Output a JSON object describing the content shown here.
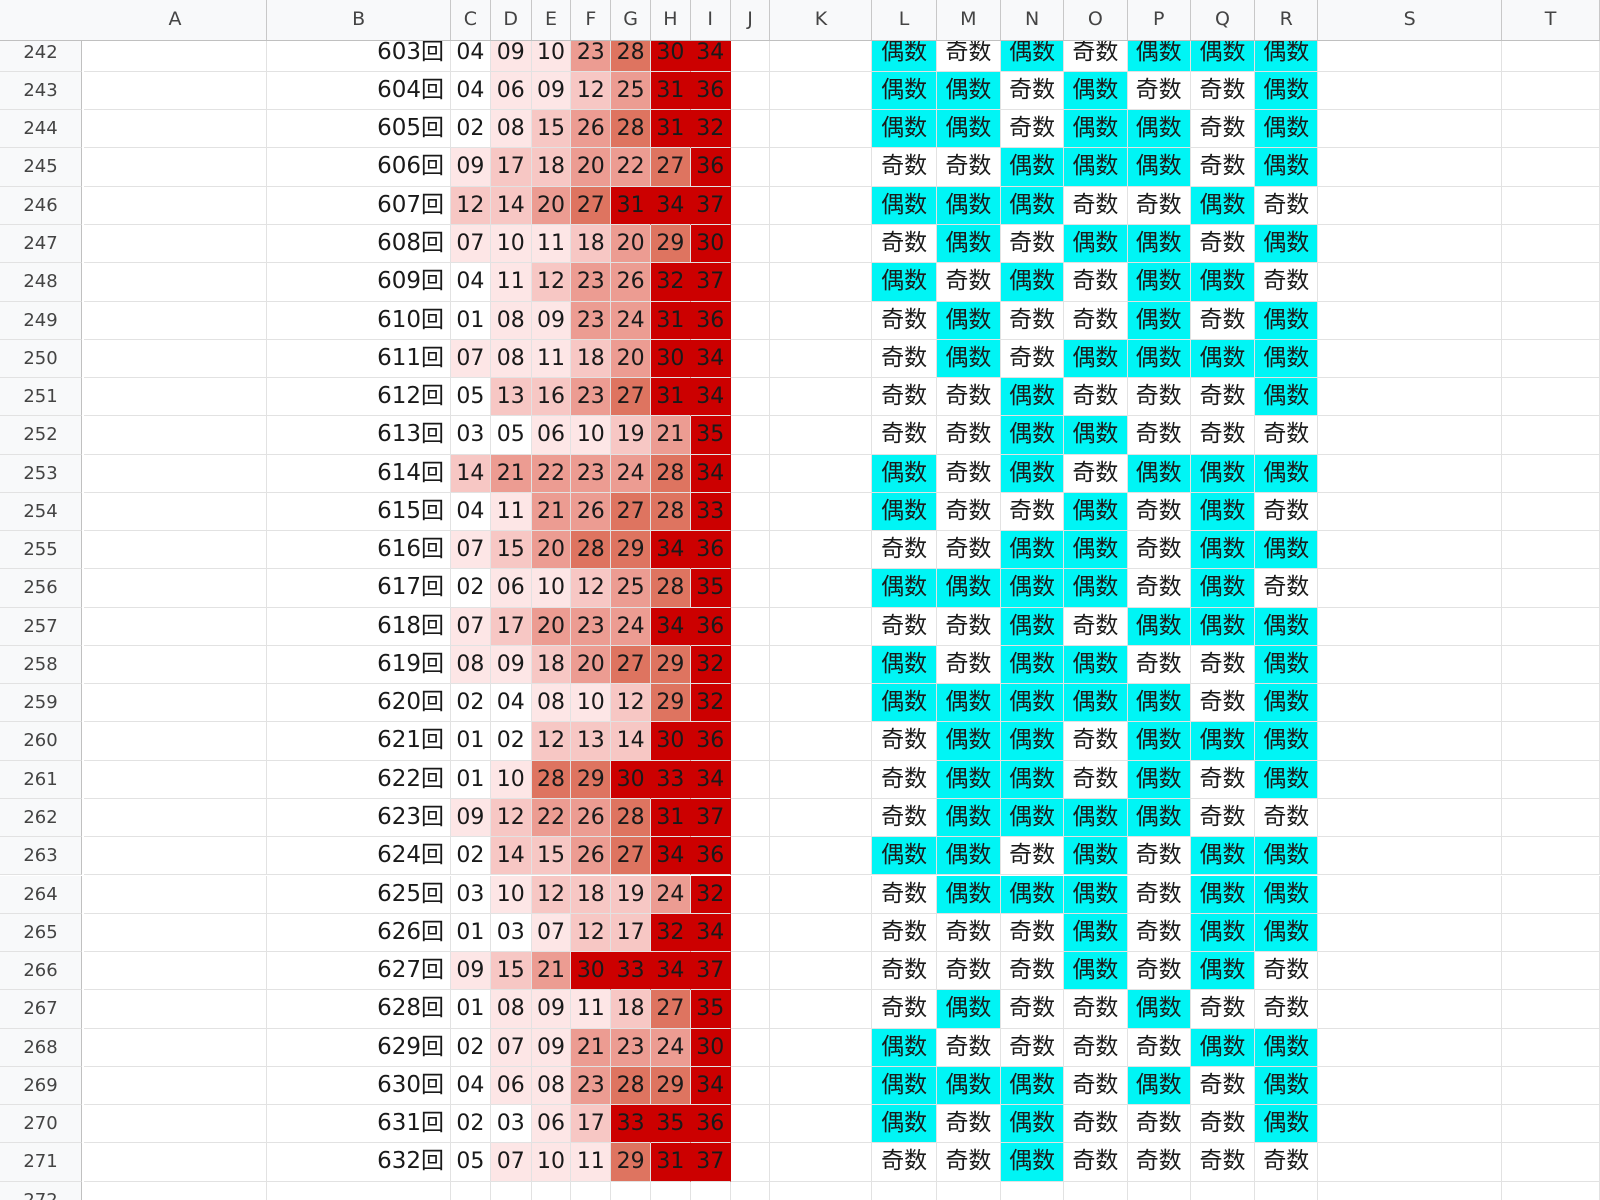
{
  "columns": [
    "A",
    "B",
    "C",
    "D",
    "E",
    "F",
    "G",
    "H",
    "I",
    "J",
    "K",
    "L",
    "M",
    "N",
    "O",
    "P",
    "Q",
    "R",
    "S",
    "T"
  ],
  "colors": {
    "even_fill": "#00f5f5",
    "odd_fill": "#ffffff",
    "heat_scale": [
      "#ffffff",
      "#fde6e6",
      "#f7c7c4",
      "#ec9c92",
      "#de7460",
      "#cc0000"
    ]
  },
  "rows": [
    {
      "row": "242",
      "kai": "603回",
      "nums": [
        "04",
        "09",
        "10",
        "23",
        "28",
        "30",
        "34"
      ],
      "parity": [
        "偶数",
        "奇数",
        "偶数",
        "奇数",
        "偶数",
        "偶数",
        "偶数"
      ]
    },
    {
      "row": "243",
      "kai": "604回",
      "nums": [
        "04",
        "06",
        "09",
        "12",
        "25",
        "31",
        "36"
      ],
      "parity": [
        "偶数",
        "偶数",
        "奇数",
        "偶数",
        "奇数",
        "奇数",
        "偶数"
      ]
    },
    {
      "row": "244",
      "kai": "605回",
      "nums": [
        "02",
        "08",
        "15",
        "26",
        "28",
        "31",
        "32"
      ],
      "parity": [
        "偶数",
        "偶数",
        "奇数",
        "偶数",
        "偶数",
        "奇数",
        "偶数"
      ]
    },
    {
      "row": "245",
      "kai": "606回",
      "nums": [
        "09",
        "17",
        "18",
        "20",
        "22",
        "27",
        "36"
      ],
      "parity": [
        "奇数",
        "奇数",
        "偶数",
        "偶数",
        "偶数",
        "奇数",
        "偶数"
      ]
    },
    {
      "row": "246",
      "kai": "607回",
      "nums": [
        "12",
        "14",
        "20",
        "27",
        "31",
        "34",
        "37"
      ],
      "parity": [
        "偶数",
        "偶数",
        "偶数",
        "奇数",
        "奇数",
        "偶数",
        "奇数"
      ]
    },
    {
      "row": "247",
      "kai": "608回",
      "nums": [
        "07",
        "10",
        "11",
        "18",
        "20",
        "29",
        "30"
      ],
      "parity": [
        "奇数",
        "偶数",
        "奇数",
        "偶数",
        "偶数",
        "奇数",
        "偶数"
      ]
    },
    {
      "row": "248",
      "kai": "609回",
      "nums": [
        "04",
        "11",
        "12",
        "23",
        "26",
        "32",
        "37"
      ],
      "parity": [
        "偶数",
        "奇数",
        "偶数",
        "奇数",
        "偶数",
        "偶数",
        "奇数"
      ]
    },
    {
      "row": "249",
      "kai": "610回",
      "nums": [
        "01",
        "08",
        "09",
        "23",
        "24",
        "31",
        "36"
      ],
      "parity": [
        "奇数",
        "偶数",
        "奇数",
        "奇数",
        "偶数",
        "奇数",
        "偶数"
      ]
    },
    {
      "row": "250",
      "kai": "611回",
      "nums": [
        "07",
        "08",
        "11",
        "18",
        "20",
        "30",
        "34"
      ],
      "parity": [
        "奇数",
        "偶数",
        "奇数",
        "偶数",
        "偶数",
        "偶数",
        "偶数"
      ]
    },
    {
      "row": "251",
      "kai": "612回",
      "nums": [
        "05",
        "13",
        "16",
        "23",
        "27",
        "31",
        "34"
      ],
      "parity": [
        "奇数",
        "奇数",
        "偶数",
        "奇数",
        "奇数",
        "奇数",
        "偶数"
      ]
    },
    {
      "row": "252",
      "kai": "613回",
      "nums": [
        "03",
        "05",
        "06",
        "10",
        "19",
        "21",
        "35"
      ],
      "parity": [
        "奇数",
        "奇数",
        "偶数",
        "偶数",
        "奇数",
        "奇数",
        "奇数"
      ]
    },
    {
      "row": "253",
      "kai": "614回",
      "nums": [
        "14",
        "21",
        "22",
        "23",
        "24",
        "28",
        "34"
      ],
      "parity": [
        "偶数",
        "奇数",
        "偶数",
        "奇数",
        "偶数",
        "偶数",
        "偶数"
      ]
    },
    {
      "row": "254",
      "kai": "615回",
      "nums": [
        "04",
        "11",
        "21",
        "26",
        "27",
        "28",
        "33"
      ],
      "parity": [
        "偶数",
        "奇数",
        "奇数",
        "偶数",
        "奇数",
        "偶数",
        "奇数"
      ]
    },
    {
      "row": "255",
      "kai": "616回",
      "nums": [
        "07",
        "15",
        "20",
        "28",
        "29",
        "34",
        "36"
      ],
      "parity": [
        "奇数",
        "奇数",
        "偶数",
        "偶数",
        "奇数",
        "偶数",
        "偶数"
      ]
    },
    {
      "row": "256",
      "kai": "617回",
      "nums": [
        "02",
        "06",
        "10",
        "12",
        "25",
        "28",
        "35"
      ],
      "parity": [
        "偶数",
        "偶数",
        "偶数",
        "偶数",
        "奇数",
        "偶数",
        "奇数"
      ]
    },
    {
      "row": "257",
      "kai": "618回",
      "nums": [
        "07",
        "17",
        "20",
        "23",
        "24",
        "34",
        "36"
      ],
      "parity": [
        "奇数",
        "奇数",
        "偶数",
        "奇数",
        "偶数",
        "偶数",
        "偶数"
      ]
    },
    {
      "row": "258",
      "kai": "619回",
      "nums": [
        "08",
        "09",
        "18",
        "20",
        "27",
        "29",
        "32"
      ],
      "parity": [
        "偶数",
        "奇数",
        "偶数",
        "偶数",
        "奇数",
        "奇数",
        "偶数"
      ]
    },
    {
      "row": "259",
      "kai": "620回",
      "nums": [
        "02",
        "04",
        "08",
        "10",
        "12",
        "29",
        "32"
      ],
      "parity": [
        "偶数",
        "偶数",
        "偶数",
        "偶数",
        "偶数",
        "奇数",
        "偶数"
      ]
    },
    {
      "row": "260",
      "kai": "621回",
      "nums": [
        "01",
        "02",
        "12",
        "13",
        "14",
        "30",
        "36"
      ],
      "parity": [
        "奇数",
        "偶数",
        "偶数",
        "奇数",
        "偶数",
        "偶数",
        "偶数"
      ]
    },
    {
      "row": "261",
      "kai": "622回",
      "nums": [
        "01",
        "10",
        "28",
        "29",
        "30",
        "33",
        "34"
      ],
      "parity": [
        "奇数",
        "偶数",
        "偶数",
        "奇数",
        "偶数",
        "奇数",
        "偶数"
      ]
    },
    {
      "row": "262",
      "kai": "623回",
      "nums": [
        "09",
        "12",
        "22",
        "26",
        "28",
        "31",
        "37"
      ],
      "parity": [
        "奇数",
        "偶数",
        "偶数",
        "偶数",
        "偶数",
        "奇数",
        "奇数"
      ]
    },
    {
      "row": "263",
      "kai": "624回",
      "nums": [
        "02",
        "14",
        "15",
        "26",
        "27",
        "34",
        "36"
      ],
      "parity": [
        "偶数",
        "偶数",
        "奇数",
        "偶数",
        "奇数",
        "偶数",
        "偶数"
      ]
    },
    {
      "row": "264",
      "kai": "625回",
      "nums": [
        "03",
        "10",
        "12",
        "18",
        "19",
        "24",
        "32"
      ],
      "parity": [
        "奇数",
        "偶数",
        "偶数",
        "偶数",
        "奇数",
        "偶数",
        "偶数"
      ]
    },
    {
      "row": "265",
      "kai": "626回",
      "nums": [
        "01",
        "03",
        "07",
        "12",
        "17",
        "32",
        "34"
      ],
      "parity": [
        "奇数",
        "奇数",
        "奇数",
        "偶数",
        "奇数",
        "偶数",
        "偶数"
      ]
    },
    {
      "row": "266",
      "kai": "627回",
      "nums": [
        "09",
        "15",
        "21",
        "30",
        "33",
        "34",
        "37"
      ],
      "parity": [
        "奇数",
        "奇数",
        "奇数",
        "偶数",
        "奇数",
        "偶数",
        "奇数"
      ]
    },
    {
      "row": "267",
      "kai": "628回",
      "nums": [
        "01",
        "08",
        "09",
        "11",
        "18",
        "27",
        "35"
      ],
      "parity": [
        "奇数",
        "偶数",
        "奇数",
        "奇数",
        "偶数",
        "奇数",
        "奇数"
      ]
    },
    {
      "row": "268",
      "kai": "629回",
      "nums": [
        "02",
        "07",
        "09",
        "21",
        "23",
        "24",
        "30"
      ],
      "parity": [
        "偶数",
        "奇数",
        "奇数",
        "奇数",
        "奇数",
        "偶数",
        "偶数"
      ]
    },
    {
      "row": "269",
      "kai": "630回",
      "nums": [
        "04",
        "06",
        "08",
        "23",
        "28",
        "29",
        "34"
      ],
      "parity": [
        "偶数",
        "偶数",
        "偶数",
        "奇数",
        "偶数",
        "奇数",
        "偶数"
      ]
    },
    {
      "row": "270",
      "kai": "631回",
      "nums": [
        "02",
        "03",
        "06",
        "17",
        "33",
        "35",
        "36"
      ],
      "parity": [
        "偶数",
        "奇数",
        "偶数",
        "奇数",
        "奇数",
        "奇数",
        "偶数"
      ]
    },
    {
      "row": "271",
      "kai": "632回",
      "nums": [
        "05",
        "07",
        "10",
        "11",
        "29",
        "31",
        "37"
      ],
      "parity": [
        "奇数",
        "奇数",
        "偶数",
        "奇数",
        "奇数",
        "奇数",
        "奇数"
      ]
    },
    {
      "row": "272",
      "kai": "",
      "nums": [],
      "parity": []
    }
  ]
}
